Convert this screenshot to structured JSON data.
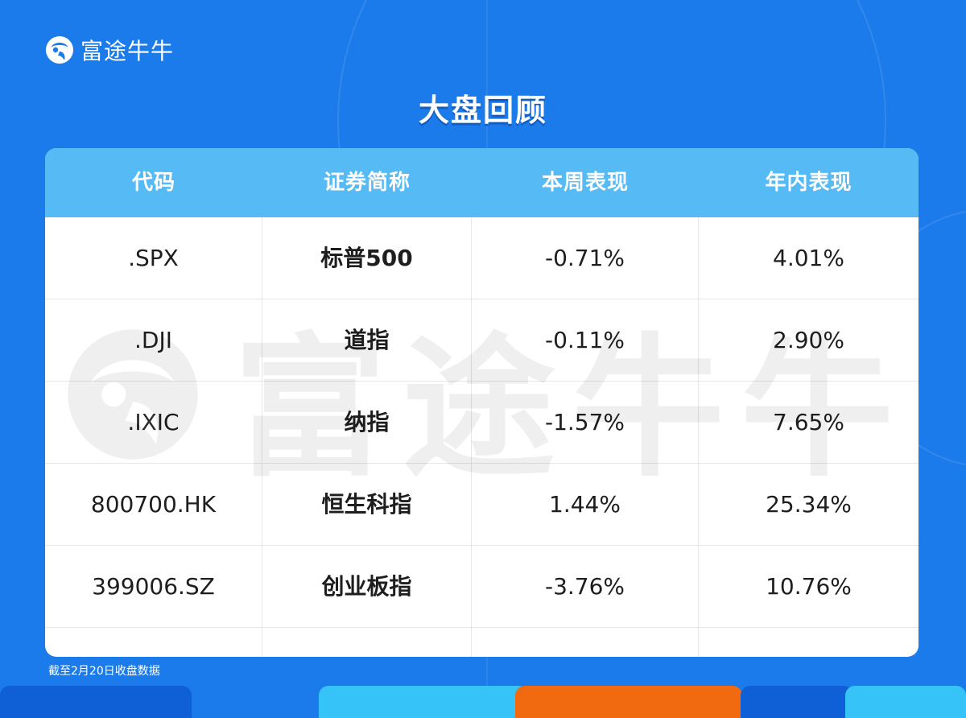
{
  "brand": {
    "name": "富途牛牛",
    "logo_icon": "futu-bull-logo-icon"
  },
  "title": "大盘回顾",
  "table": {
    "headers": [
      "代码",
      "证券简称",
      "本周表现",
      "年内表现"
    ],
    "rows": [
      {
        "code": ".SPX",
        "name": "标普500",
        "week": "-0.71%",
        "ytd": "4.01%"
      },
      {
        "code": ".DJI",
        "name": "道指",
        "week": "-0.11%",
        "ytd": "2.90%"
      },
      {
        "code": ".IXIC",
        "name": "纳指",
        "week": "-1.57%",
        "ytd": "7.65%"
      },
      {
        "code": "800700.HK",
        "name": "恒生科指",
        "week": "1.44%",
        "ytd": "25.34%"
      },
      {
        "code": "399006.SZ",
        "name": "创业板指",
        "week": "-3.76%",
        "ytd": "10.76%"
      }
    ]
  },
  "watermark": "富途牛牛",
  "footnote": "截至2月20日收盘数据",
  "colors": {
    "background": "#1c7bea",
    "header": "#56baf5",
    "accent_orange": "#f26a10",
    "accent_cyan": "#36c3f7",
    "accent_dark": "#0f5fd6"
  }
}
